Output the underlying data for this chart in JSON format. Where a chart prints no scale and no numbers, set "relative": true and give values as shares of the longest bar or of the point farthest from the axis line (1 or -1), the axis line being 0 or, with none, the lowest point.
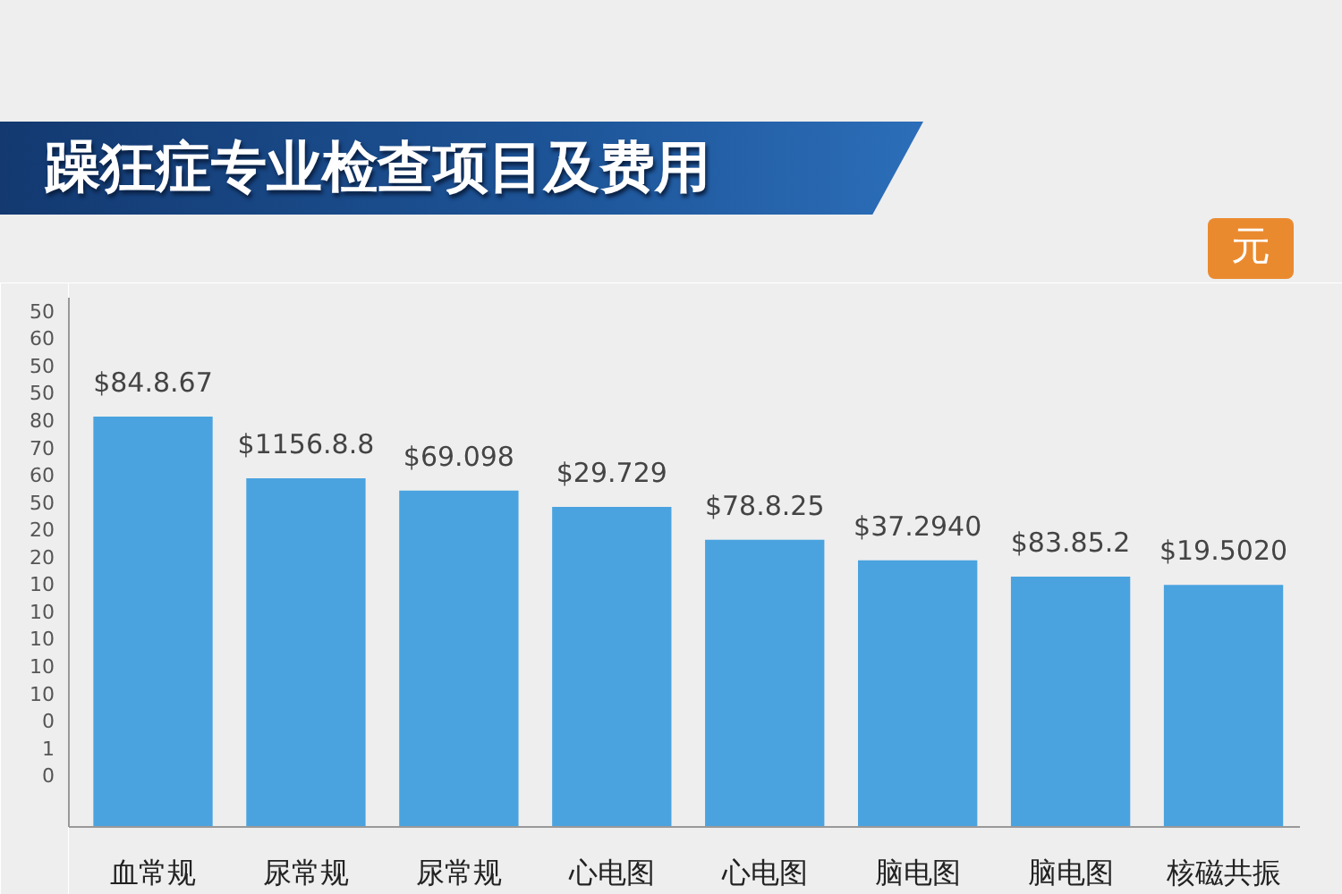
{
  "chart_data": {
    "type": "bar",
    "title": "躁狂症专业检查项目及费用",
    "ylabel": "元",
    "relative": true,
    "categories": [
      "血常规",
      "尿常规",
      "尿常规",
      "心电图",
      "心电图",
      "脑电图",
      "脑电图",
      "核磁共振"
    ],
    "values": [
      1,
      0.85,
      0.82,
      0.78,
      0.7,
      0.65,
      0.61,
      0.59
    ],
    "color": "#4aa3df",
    "annotations": [
      "50",
      "60",
      "50",
      "50",
      "80",
      "70",
      "60",
      "50",
      "20",
      "20",
      "10",
      "10",
      "10",
      "10",
      "10",
      "0",
      "1",
      "0",
      {
        "text": "$84.8.67",
        "x": "血常规",
        "y": 1
      },
      {
        "text": "$1156.8.8",
        "x": "尿常规",
        "y": 0.85
      },
      {
        "text": "$69.098",
        "y": 0.82
      },
      {
        "text": "$29.729",
        "x": "心电图",
        "y": 0.78
      },
      {
        "text": "$78.8.25",
        "y": 0.7
      },
      {
        "text": "$37.2940",
        "x": "脑电图",
        "y": 0.65
      },
      {
        "text": "$83.85.2",
        "y": 0.61
      },
      {
        "text": "$19.5020",
        "x": "核磁共振",
        "y": 0.59
      }
    ]
  }
}
